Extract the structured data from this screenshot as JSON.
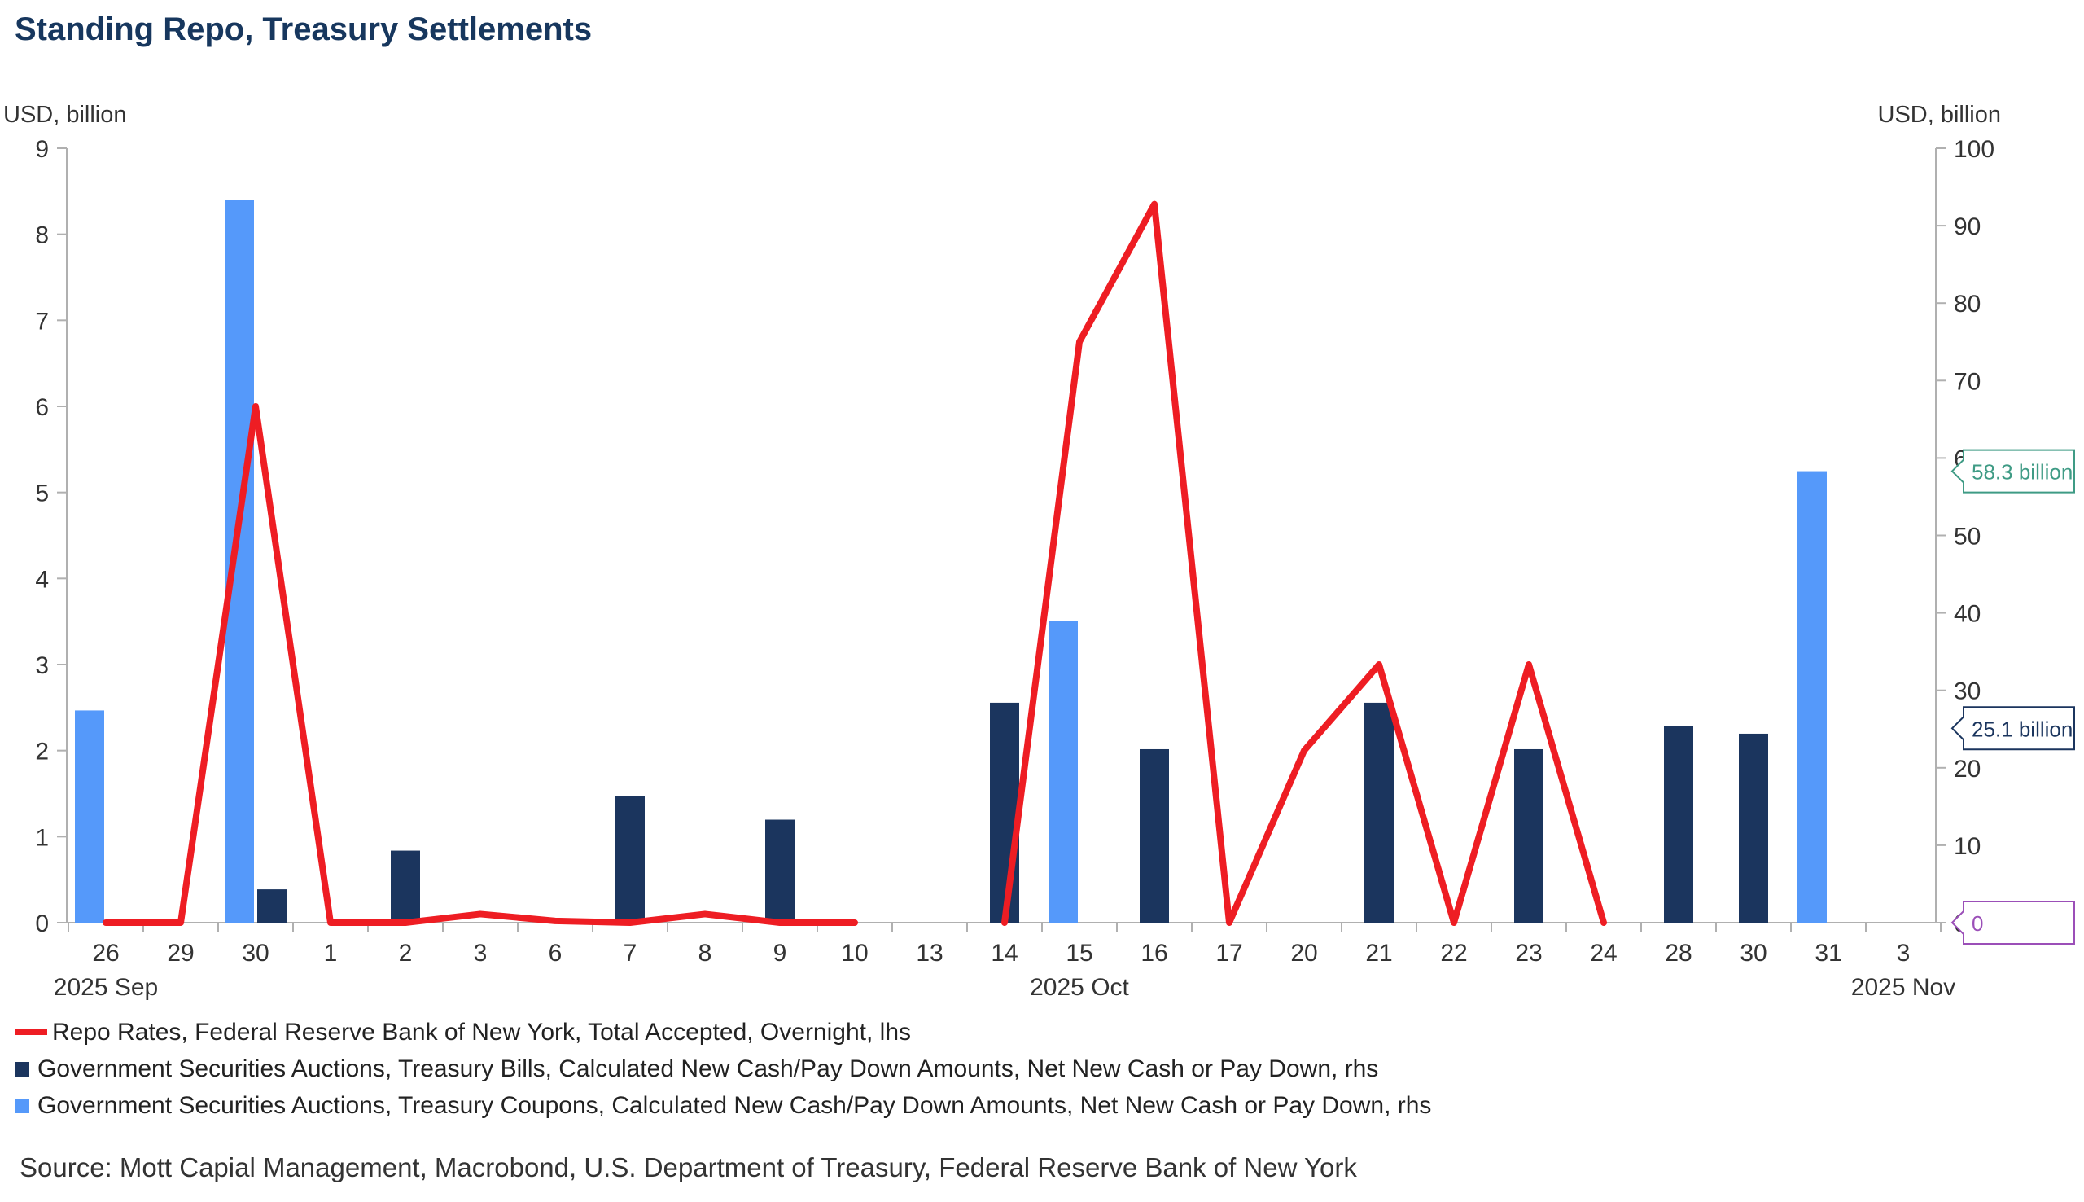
{
  "title": "Standing Repo, Treasury Settlements",
  "source": "Source: Mott Capial Management, Macrobond, U.S. Department of Treasury, Federal Reserve Bank of New York",
  "colors": {
    "repo": "#ee1d23",
    "bills": "#1b355e",
    "coupons": "#5599fa",
    "title": "#17375e"
  },
  "chart_data": {
    "type": "bar+line",
    "title": "Standing Repo, Treasury Settlements",
    "ylabel_left": "USD, billion",
    "ylabel_right": "USD, billion",
    "ylim_left": [
      0,
      9
    ],
    "ylim_right": [
      0,
      100
    ],
    "yticks_left": [
      "0",
      "1",
      "2",
      "3",
      "4",
      "5",
      "6",
      "7",
      "8",
      "9"
    ],
    "yticks_right": [
      "0",
      "10",
      "20",
      "30",
      "40",
      "50",
      "60",
      "70",
      "80",
      "90",
      "100"
    ],
    "categories": [
      "26",
      "29",
      "30",
      "1",
      "2",
      "3",
      "6",
      "7",
      "8",
      "9",
      "10",
      "13",
      "14",
      "15",
      "16",
      "17",
      "20",
      "21",
      "22",
      "23",
      "24",
      "28",
      "30",
      "31",
      "3"
    ],
    "month_labels": [
      {
        "label": "2025 Sep",
        "at_index": 0
      },
      {
        "label": "2025 Oct",
        "at_index": 13
      },
      {
        "label": "2025 Nov",
        "at_index": 24
      }
    ],
    "series": [
      {
        "name": "Repo Rates, Federal Reserve Bank of New York, Total Accepted, Overnight, lhs",
        "kind": "line",
        "axis": "left",
        "values": [
          0.0,
          0.0,
          6.0,
          0.0,
          0.0,
          0.1,
          0.02,
          0.0,
          0.1,
          0.0,
          0.0,
          null,
          0.0,
          6.75,
          8.35,
          0.0,
          2.0,
          3.0,
          0.0,
          3.0,
          0.0,
          null,
          null,
          null,
          null
        ]
      },
      {
        "name": "Government Securities Auctions, Treasury Bills, Calculated New Cash/Pay Down Amounts, Net New Cash or Pay Down, rhs",
        "kind": "bar",
        "axis": "right",
        "values": [
          null,
          null,
          4.3,
          null,
          9.3,
          null,
          null,
          16.4,
          null,
          13.3,
          null,
          null,
          28.4,
          null,
          22.4,
          null,
          null,
          28.4,
          null,
          22.4,
          null,
          25.4,
          24.4,
          null,
          null
        ]
      },
      {
        "name": "Government Securities Auctions, Treasury Coupons, Calculated New Cash/Pay Down Amounts, Net New Cash or Pay Down, rhs",
        "kind": "bar",
        "axis": "right",
        "values": [
          27.4,
          null,
          93.3,
          null,
          null,
          null,
          null,
          null,
          null,
          null,
          null,
          null,
          null,
          39.0,
          null,
          null,
          null,
          null,
          null,
          null,
          null,
          null,
          null,
          58.3,
          null
        ]
      }
    ],
    "annotations": [
      {
        "text": "58.3 billion",
        "axis": "right",
        "value": 58.3,
        "color": "#3f9b85"
      },
      {
        "text": "25.1 billion",
        "axis": "right",
        "value": 25.1,
        "color": "#1b355e"
      },
      {
        "text": "0",
        "axis": "right",
        "value": 0,
        "color": "#9b4fb8"
      }
    ]
  }
}
